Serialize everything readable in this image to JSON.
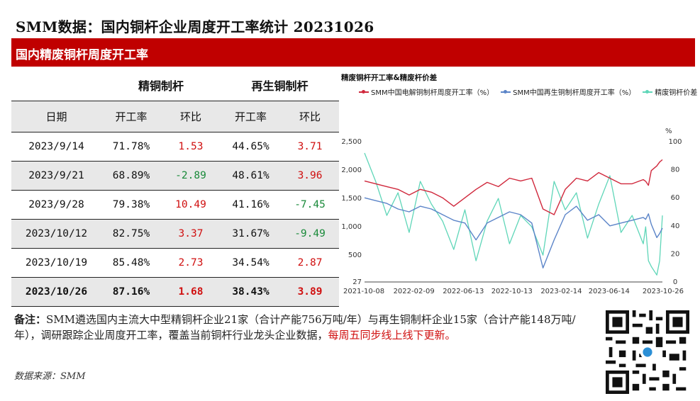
{
  "header": {
    "title": "SMM数据：国内铜杆企业周度开工率统计 20231026",
    "banner": "国内精废铜杆周度开工率"
  },
  "table": {
    "groups": [
      "精铜制杆",
      "再生铜制杆"
    ],
    "columns": [
      "日期",
      "开工率",
      "环比",
      "开工率",
      "环比"
    ],
    "rows": [
      {
        "date": "2023/9/14",
        "refined_rate": "71.78%",
        "refined_chg": "1.53",
        "recycled_rate": "44.65%",
        "recycled_chg": "3.71"
      },
      {
        "date": "2023/9/21",
        "refined_rate": "68.89%",
        "refined_chg": "-2.89",
        "recycled_rate": "48.61%",
        "recycled_chg": "3.96"
      },
      {
        "date": "2023/9/28",
        "refined_rate": "79.38%",
        "refined_chg": "10.49",
        "recycled_rate": "41.16%",
        "recycled_chg": "-7.45"
      },
      {
        "date": "2023/10/12",
        "refined_rate": "82.75%",
        "refined_chg": "3.37",
        "recycled_rate": "31.67%",
        "recycled_chg": "-9.49"
      },
      {
        "date": "2023/10/19",
        "refined_rate": "85.48%",
        "refined_chg": "2.73",
        "recycled_rate": "34.54%",
        "recycled_chg": "2.87"
      },
      {
        "date": "2023/10/26",
        "refined_rate": "87.16%",
        "refined_chg": "1.68",
        "recycled_rate": "38.43%",
        "recycled_chg": "3.89"
      }
    ]
  },
  "note": {
    "label": "备注：",
    "text": "SMM遴选国内主流大中型精铜杆企业21家（合计产能756万吨/年）与再生铜制杆企业15家（合计产能148万吨/年），调研跟踪企业周度开工率，覆盖当前铜杆行业龙头企业数据，",
    "highlight": "每周五同步线上线下更新。"
  },
  "source": "数据来源：SMM",
  "colors": {
    "refined": "#d0283c",
    "recycled": "#5b84c8",
    "spread": "#5fd6b8",
    "positive": "#d01010",
    "negative": "#1a8a3a",
    "banner": "#c00000"
  },
  "chart_data": {
    "type": "line",
    "title": "精废铜杆开工率&精废杆价差",
    "right_unit": "%",
    "x_ticks": [
      "2021-10-08",
      "2022-02-09",
      "2022-06-13",
      "2022-10-13",
      "2023-02-14",
      "2023-06-14",
      "2023-10-26"
    ],
    "x_range": [
      "2021-10-08",
      "2023-10-26"
    ],
    "left_axis": {
      "ticks": [
        "27",
        "500",
        "1,000",
        "1,500",
        "2,000",
        "2,500"
      ],
      "ylim": [
        27,
        2500
      ]
    },
    "right_axis": {
      "ticks": [
        "0",
        "20",
        "40",
        "60",
        "80",
        "100"
      ],
      "ylim": [
        0,
        100
      ]
    },
    "series": [
      {
        "name": "SMM中国电解铜制杆周度开工率（%）",
        "axis": "right",
        "x": [
          "2021-10-08",
          "2021-11-05",
          "2021-12-03",
          "2021-12-31",
          "2022-01-28",
          "2022-02-25",
          "2022-03-25",
          "2022-04-22",
          "2022-05-20",
          "2022-06-17",
          "2022-07-15",
          "2022-08-12",
          "2022-09-09",
          "2022-10-07",
          "2022-11-04",
          "2022-12-02",
          "2022-12-30",
          "2023-01-27",
          "2023-02-24",
          "2023-03-24",
          "2023-04-21",
          "2023-05-19",
          "2023-06-16",
          "2023-07-14",
          "2023-08-11",
          "2023-09-08",
          "2023-09-14",
          "2023-09-21",
          "2023-09-28",
          "2023-10-12",
          "2023-10-19",
          "2023-10-26"
        ],
        "values": [
          72,
          70,
          68,
          66,
          62,
          66,
          64,
          60,
          54,
          60,
          66,
          71,
          68,
          74,
          72,
          74,
          52,
          48,
          66,
          74,
          72,
          78,
          74,
          70,
          70,
          73,
          71.78,
          68.89,
          79.38,
          82.75,
          85.48,
          87.16
        ]
      },
      {
        "name": "SMM中国再生铜制杆周度开工率（%）",
        "axis": "right",
        "x": [
          "2021-10-08",
          "2021-11-05",
          "2021-12-03",
          "2021-12-31",
          "2022-01-28",
          "2022-02-25",
          "2022-03-25",
          "2022-04-22",
          "2022-05-20",
          "2022-06-17",
          "2022-07-15",
          "2022-08-12",
          "2022-09-09",
          "2022-10-07",
          "2022-11-04",
          "2022-12-02",
          "2022-12-30",
          "2023-01-27",
          "2023-02-24",
          "2023-03-24",
          "2023-04-21",
          "2023-05-19",
          "2023-06-16",
          "2023-07-14",
          "2023-08-11",
          "2023-09-08",
          "2023-09-14",
          "2023-09-21",
          "2023-09-28",
          "2023-10-12",
          "2023-10-19",
          "2023-10-26"
        ],
        "values": [
          60,
          58,
          56,
          52,
          50,
          54,
          52,
          48,
          44,
          42,
          30,
          42,
          46,
          50,
          48,
          42,
          10,
          30,
          48,
          54,
          44,
          48,
          40,
          42,
          44,
          46,
          44.65,
          48.61,
          41.16,
          31.67,
          34.54,
          38.43
        ]
      },
      {
        "name": "精废铜杆价差",
        "axis": "left",
        "x": [
          "2021-10-08",
          "2021-11-05",
          "2021-12-03",
          "2021-12-31",
          "2022-01-28",
          "2022-02-25",
          "2022-03-25",
          "2022-04-22",
          "2022-05-20",
          "2022-06-17",
          "2022-07-15",
          "2022-08-12",
          "2022-09-09",
          "2022-10-07",
          "2022-11-04",
          "2022-12-02",
          "2022-12-30",
          "2023-01-27",
          "2023-02-24",
          "2023-03-24",
          "2023-04-21",
          "2023-05-19",
          "2023-06-16",
          "2023-07-14",
          "2023-08-11",
          "2023-09-08",
          "2023-09-14",
          "2023-09-21",
          "2023-09-28",
          "2023-10-12",
          "2023-10-19",
          "2023-10-26"
        ],
        "values": [
          2300,
          1800,
          1200,
          1600,
          900,
          1800,
          1400,
          1100,
          600,
          1300,
          400,
          1100,
          1500,
          700,
          1200,
          1000,
          500,
          1800,
          1300,
          1600,
          800,
          1400,
          1900,
          900,
          1200,
          700,
          1000,
          400,
          300,
          150,
          400,
          1200
        ]
      }
    ],
    "legend_position": "top",
    "grid": false
  }
}
